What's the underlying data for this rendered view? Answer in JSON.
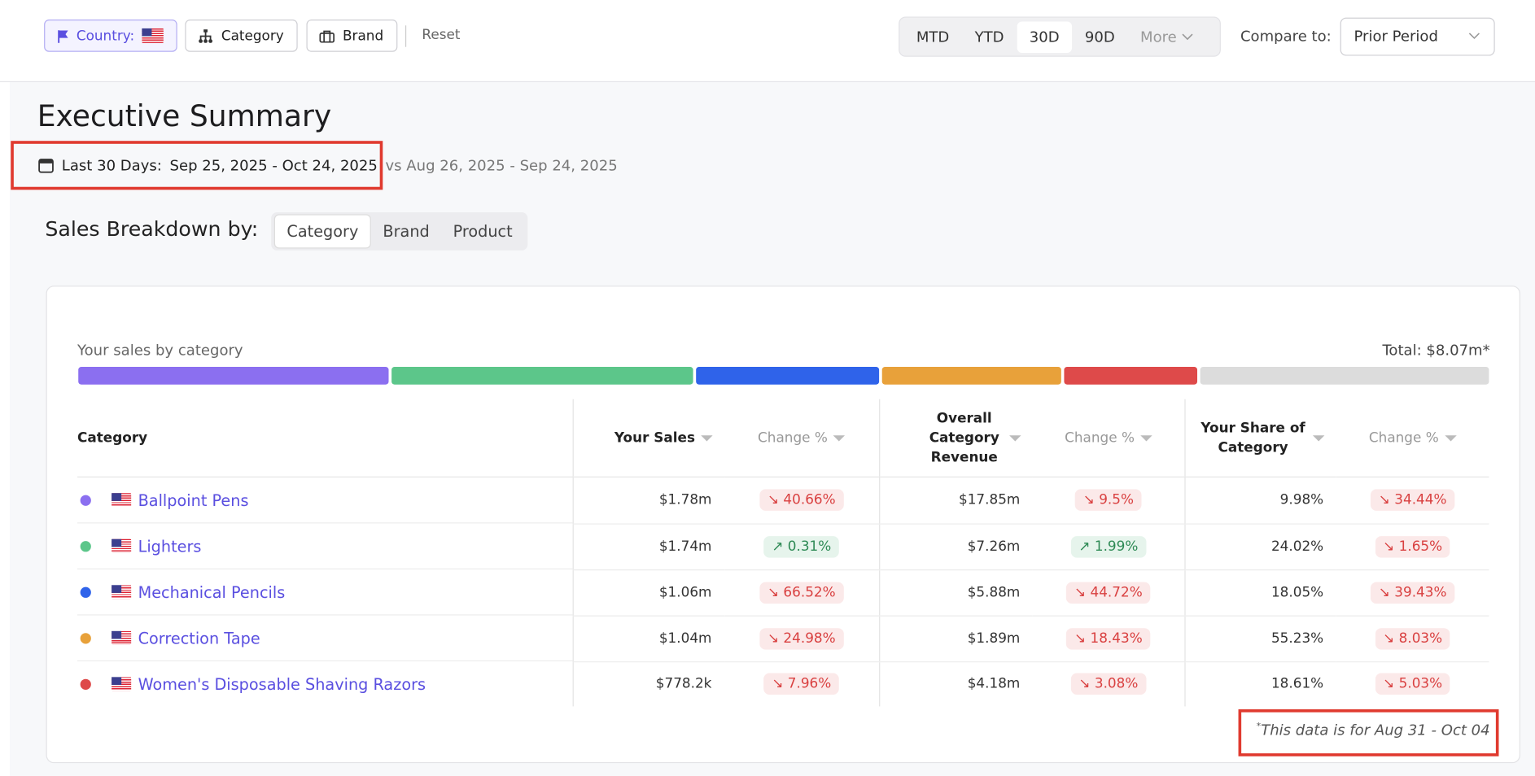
{
  "toolbar": {
    "filters": [
      "Country:",
      "Category",
      "Brand"
    ],
    "reset": "Reset",
    "periods": [
      "MTD",
      "YTD",
      "30D",
      "90D",
      "More"
    ],
    "active_period": "30D",
    "compare_label": "Compare to:",
    "compare_value": "Prior Period"
  },
  "header": {
    "title": "Executive Summary",
    "range_label": "Last 30 Days:",
    "range": "Sep 25, 2025 - Oct 24, 2025",
    "compare_range": "vs Aug 26, 2025 - Sep 24, 2025"
  },
  "breakdown": {
    "label": "Sales Breakdown by:",
    "tabs": [
      "Category",
      "Brand",
      "Product"
    ],
    "active_tab": "Category"
  },
  "card": {
    "caption": "Your sales by category",
    "total": "Total: $8.07m*",
    "columns": [
      "Category",
      "Your Sales",
      "Change %",
      "Overall Category Revenue",
      "Change %",
      "Your Share of Category",
      "Change %"
    ],
    "rows": [
      {
        "color": "#8b6ff0",
        "cells": [
          "Ballpoint Pens",
          "$1.78m",
          "↘ 40.66%",
          "$17.85m",
          "↘ 9.5%",
          "9.98%",
          "↘ 34.44%"
        ]
      },
      {
        "color": "#5cc68a",
        "cells": [
          "Lighters",
          "$1.74m",
          "↗ 0.31%",
          "$7.26m",
          "↗ 1.99%",
          "24.02%",
          "↘ 1.65%"
        ]
      },
      {
        "color": "#2f63ea",
        "cells": [
          "Mechanical Pencils",
          "$1.06m",
          "↘ 66.52%",
          "$5.88m",
          "↘ 44.72%",
          "18.05%",
          "↘ 39.43%"
        ]
      },
      {
        "color": "#e8a13a",
        "cells": [
          "Correction Tape",
          "$1.04m",
          "↘ 24.98%",
          "$1.89m",
          "↘ 18.43%",
          "55.23%",
          "↘ 8.03%"
        ]
      },
      {
        "color": "#de4a4a",
        "cells": [
          "Women's Disposable Shaving Razors",
          "$778.2k",
          "↘ 7.96%",
          "$4.18m",
          "↘ 3.08%",
          "18.61%",
          "↘ 5.03%"
        ]
      }
    ],
    "footnote_mark": "*",
    "footnote": "This data is for Aug 31 - Oct 04"
  }
}
